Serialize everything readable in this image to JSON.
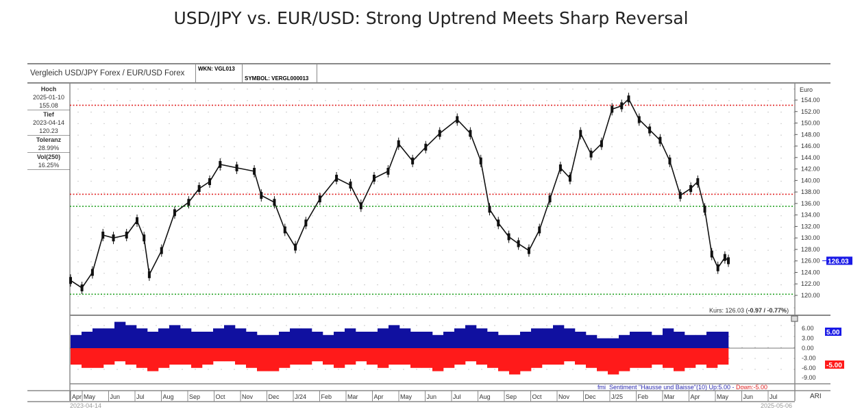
{
  "title": "USD/JPY vs. EUR/USD: Strong Uptrend Meets Sharp Reversal",
  "header": {
    "name": "Vergleich USD/JPY Forex / EUR/USD Forex",
    "wkn": "WKN: VGL013",
    "symbol": "SYMBOL: VERGL000013"
  },
  "info": {
    "hoch_label": "Hoch",
    "hoch_date": "2025-01-10",
    "hoch_value": "155.08",
    "tief_label": "Tief",
    "tief_date": "2023-04-14",
    "tief_value": "120.23",
    "toleranz_label": "Toleranz",
    "toleranz_value": "28.99%",
    "vol_label": "Vol(250)",
    "vol_value": "16.25%"
  },
  "kurs": {
    "prefix": "Kurs: 126.03 (",
    "change": "-0.97 / -0.77%",
    "suffix": ")"
  },
  "sentiment_legend": {
    "text": "fmi_Sentiment \"Hausse und Baisse\"(10) Up:5.00 - ",
    "down": "Down:-5.00"
  },
  "corner_label": "ARI",
  "bottom_dates": {
    "start": "2023-04-14",
    "end": "2025-05-06"
  },
  "chart_data": [
    {
      "type": "line",
      "title": "",
      "ylabel": "Euro",
      "ylim": [
        119,
        156
      ],
      "grid": true,
      "current_value_label": "126.03",
      "yticks": [
        "154.00",
        "152.00",
        "150.00",
        "148.00",
        "146.00",
        "144.00",
        "142.00",
        "140.00",
        "138.00",
        "136.00",
        "134.00",
        "132.00",
        "130.00",
        "128.00",
        "126.00",
        "124.00",
        "122.00",
        "120.00"
      ],
      "xticks": [
        "Apr",
        "May",
        "Jun",
        "Jul",
        "Aug",
        "Sep",
        "Oct",
        "Nov",
        "Dec",
        "J/24",
        "Feb",
        "Mar",
        "Apr",
        "May",
        "Jun",
        "Jul",
        "Aug",
        "Sep",
        "Oct",
        "Nov",
        "Dec",
        "J/25",
        "Feb",
        "Mar",
        "Apr",
        "May",
        "Jun",
        "Jul"
      ],
      "hlines": [
        {
          "value": 153.1,
          "color": "#e02020"
        },
        {
          "value": 137.6,
          "color": "#e02020"
        },
        {
          "value": 135.5,
          "color": "#20a020"
        },
        {
          "value": 120.2,
          "color": "#20a020"
        }
      ],
      "x": [
        "2023-04-14",
        "2023-04-27",
        "2023-05-09",
        "2023-05-21",
        "2023-06-02",
        "2023-06-17",
        "2023-06-29",
        "2023-07-07",
        "2023-07-13",
        "2023-07-27",
        "2023-08-11",
        "2023-08-27",
        "2023-09-08",
        "2023-09-20",
        "2023-10-02",
        "2023-10-21",
        "2023-11-10",
        "2023-11-18",
        "2023-12-03",
        "2023-12-15",
        "2023-12-27",
        "2024-01-08",
        "2024-01-24",
        "2024-02-12",
        "2024-02-28",
        "2024-03-11",
        "2024-03-26",
        "2024-04-11",
        "2024-04-23",
        "2024-05-09",
        "2024-05-24",
        "2024-06-09",
        "2024-06-29",
        "2024-07-14",
        "2024-07-26",
        "2024-08-05",
        "2024-08-15",
        "2024-08-27",
        "2024-09-07",
        "2024-09-19",
        "2024-10-01",
        "2024-10-13",
        "2024-10-25",
        "2024-11-05",
        "2024-11-17",
        "2024-11-29",
        "2024-12-11",
        "2024-12-23",
        "2025-01-03",
        "2025-01-11",
        "2025-01-23",
        "2025-02-04",
        "2025-02-16",
        "2025-02-27",
        "2025-03-11",
        "2025-03-23",
        "2025-03-31",
        "2025-04-08",
        "2025-04-16",
        "2025-04-23",
        "2025-05-01",
        "2025-05-05"
      ],
      "y": [
        122.6,
        121.3,
        124.0,
        130.5,
        130.0,
        130.5,
        133.0,
        130.0,
        123.6,
        127.8,
        134.4,
        136.2,
        138.6,
        139.8,
        142.8,
        142.2,
        141.6,
        137.4,
        136.2,
        131.4,
        128.4,
        132.6,
        136.8,
        140.4,
        139.2,
        135.6,
        140.4,
        141.6,
        146.4,
        143.4,
        145.8,
        148.2,
        150.6,
        148.2,
        143.4,
        135.0,
        132.6,
        130.2,
        129.0,
        127.8,
        131.4,
        136.8,
        142.2,
        140.4,
        148.2,
        144.6,
        146.4,
        152.4,
        153.0,
        154.2,
        150.6,
        148.8,
        147.0,
        143.4,
        137.4,
        138.6,
        139.8,
        135.0,
        127.2,
        124.8,
        126.6,
        126.03
      ]
    },
    {
      "type": "bar",
      "ylim": [
        -10,
        8
      ],
      "yticks": [
        "6.00",
        "3.00",
        "0.00",
        "-3.00",
        "-6.00",
        "-9.00"
      ],
      "up_label": "5.00",
      "down_label": "-5.00",
      "colors": {
        "up": "#1010a0",
        "down": "#ff1a1a"
      },
      "series": [
        {
          "name": "Up",
          "values": [
            4,
            5,
            6,
            6,
            8,
            7,
            6,
            5,
            6,
            7,
            6,
            5,
            5,
            6,
            7,
            6,
            5,
            4,
            4,
            5,
            6,
            6,
            5,
            4,
            5,
            6,
            5,
            5,
            6,
            7,
            6,
            5,
            5,
            4,
            5,
            6,
            7,
            6,
            5,
            4,
            4,
            5,
            6,
            6,
            7,
            6,
            5,
            4,
            3,
            3,
            4,
            5,
            5,
            4,
            6,
            5,
            4,
            4,
            5,
            5
          ]
        },
        {
          "name": "Down",
          "values": [
            -5,
            -6,
            -6,
            -5,
            -4,
            -5,
            -6,
            -7,
            -6,
            -5,
            -5,
            -6,
            -5,
            -4,
            -4,
            -5,
            -6,
            -7,
            -7,
            -6,
            -5,
            -5,
            -4,
            -5,
            -6,
            -5,
            -4,
            -5,
            -6,
            -5,
            -5,
            -6,
            -6,
            -7,
            -6,
            -5,
            -4,
            -5,
            -6,
            -7,
            -8,
            -7,
            -6,
            -5,
            -5,
            -4,
            -5,
            -6,
            -7,
            -8,
            -7,
            -6,
            -6,
            -5,
            -6,
            -7,
            -6,
            -5,
            -6,
            -5
          ]
        }
      ]
    }
  ]
}
